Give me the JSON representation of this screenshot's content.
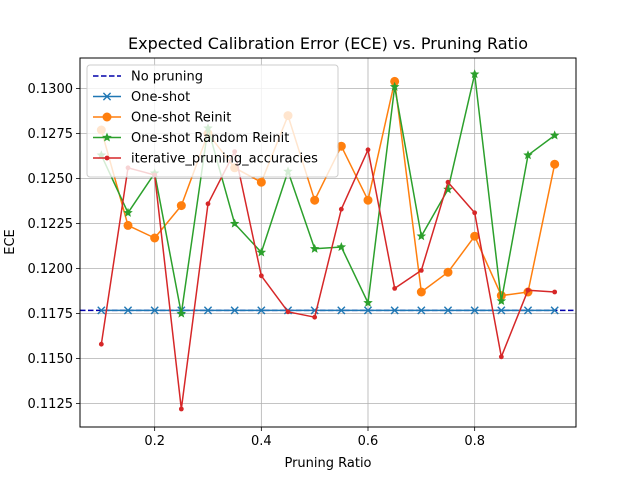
{
  "chart_data": {
    "type": "line",
    "title": "Expected Calibration Error (ECE) vs. Pruning Ratio",
    "xlabel": "Pruning Ratio",
    "ylabel": "ECE",
    "xlim": [
      0.06,
      0.99
    ],
    "ylim": [
      0.1112,
      0.1317
    ],
    "xticks": [
      0.2,
      0.4,
      0.6,
      0.8
    ],
    "xtick_labels": [
      "0.2",
      "0.4",
      "0.6",
      "0.8"
    ],
    "yticks": [
      0.1125,
      0.115,
      0.1175,
      0.12,
      0.1225,
      0.125,
      0.1275,
      0.13
    ],
    "ytick_labels": [
      "0.1125",
      "0.1150",
      "0.1175",
      "0.1200",
      "0.1225",
      "0.1250",
      "0.1275",
      "0.1300"
    ],
    "grid": true,
    "legend_position": "top-left",
    "baseline": {
      "name": "No pruning",
      "value": 0.11768,
      "color": "#0000aa",
      "style": "dashed"
    },
    "x": [
      0.1,
      0.15,
      0.2,
      0.25,
      0.3,
      0.35,
      0.4,
      0.45,
      0.5,
      0.55,
      0.6,
      0.65,
      0.7,
      0.75,
      0.8,
      0.85,
      0.9,
      0.95
    ],
    "series": [
      {
        "name": "One-shot",
        "color": "#1f77b4",
        "marker": "x",
        "values": [
          0.11768,
          0.11768,
          0.11768,
          0.11768,
          0.11768,
          0.11768,
          0.11768,
          0.11768,
          0.11768,
          0.11768,
          0.11768,
          0.11768,
          0.11768,
          0.11768,
          0.11768,
          0.11768,
          0.11768,
          0.11768
        ]
      },
      {
        "name": "One-shot Reinit",
        "color": "#ff7f0e",
        "marker": "circle",
        "values": [
          0.1277,
          0.1224,
          0.1217,
          0.1235,
          0.1275,
          0.1256,
          0.1248,
          0.1285,
          0.1238,
          0.1268,
          0.1238,
          0.1304,
          0.1187,
          0.1198,
          0.1218,
          0.1185,
          0.1187,
          0.1258
        ]
      },
      {
        "name": "One-shot Random Reinit",
        "color": "#2ca02c",
        "marker": "star",
        "values": [
          0.1263,
          0.1231,
          0.1253,
          0.1175,
          0.1278,
          0.1225,
          0.1209,
          0.1254,
          0.1211,
          0.1212,
          0.1181,
          0.1301,
          0.1218,
          0.1244,
          0.1308,
          0.1182,
          0.1263,
          0.1274
        ]
      },
      {
        "name": "iterative_pruning_accuracies",
        "color": "#d62728",
        "marker": "dot",
        "values": [
          0.1158,
          0.1256,
          0.1252,
          0.1122,
          0.1236,
          0.1265,
          0.1196,
          0.1176,
          0.1173,
          0.1233,
          0.1266,
          0.1189,
          0.1199,
          0.1248,
          0.1231,
          0.1151,
          0.1188,
          0.1187
        ]
      }
    ]
  }
}
